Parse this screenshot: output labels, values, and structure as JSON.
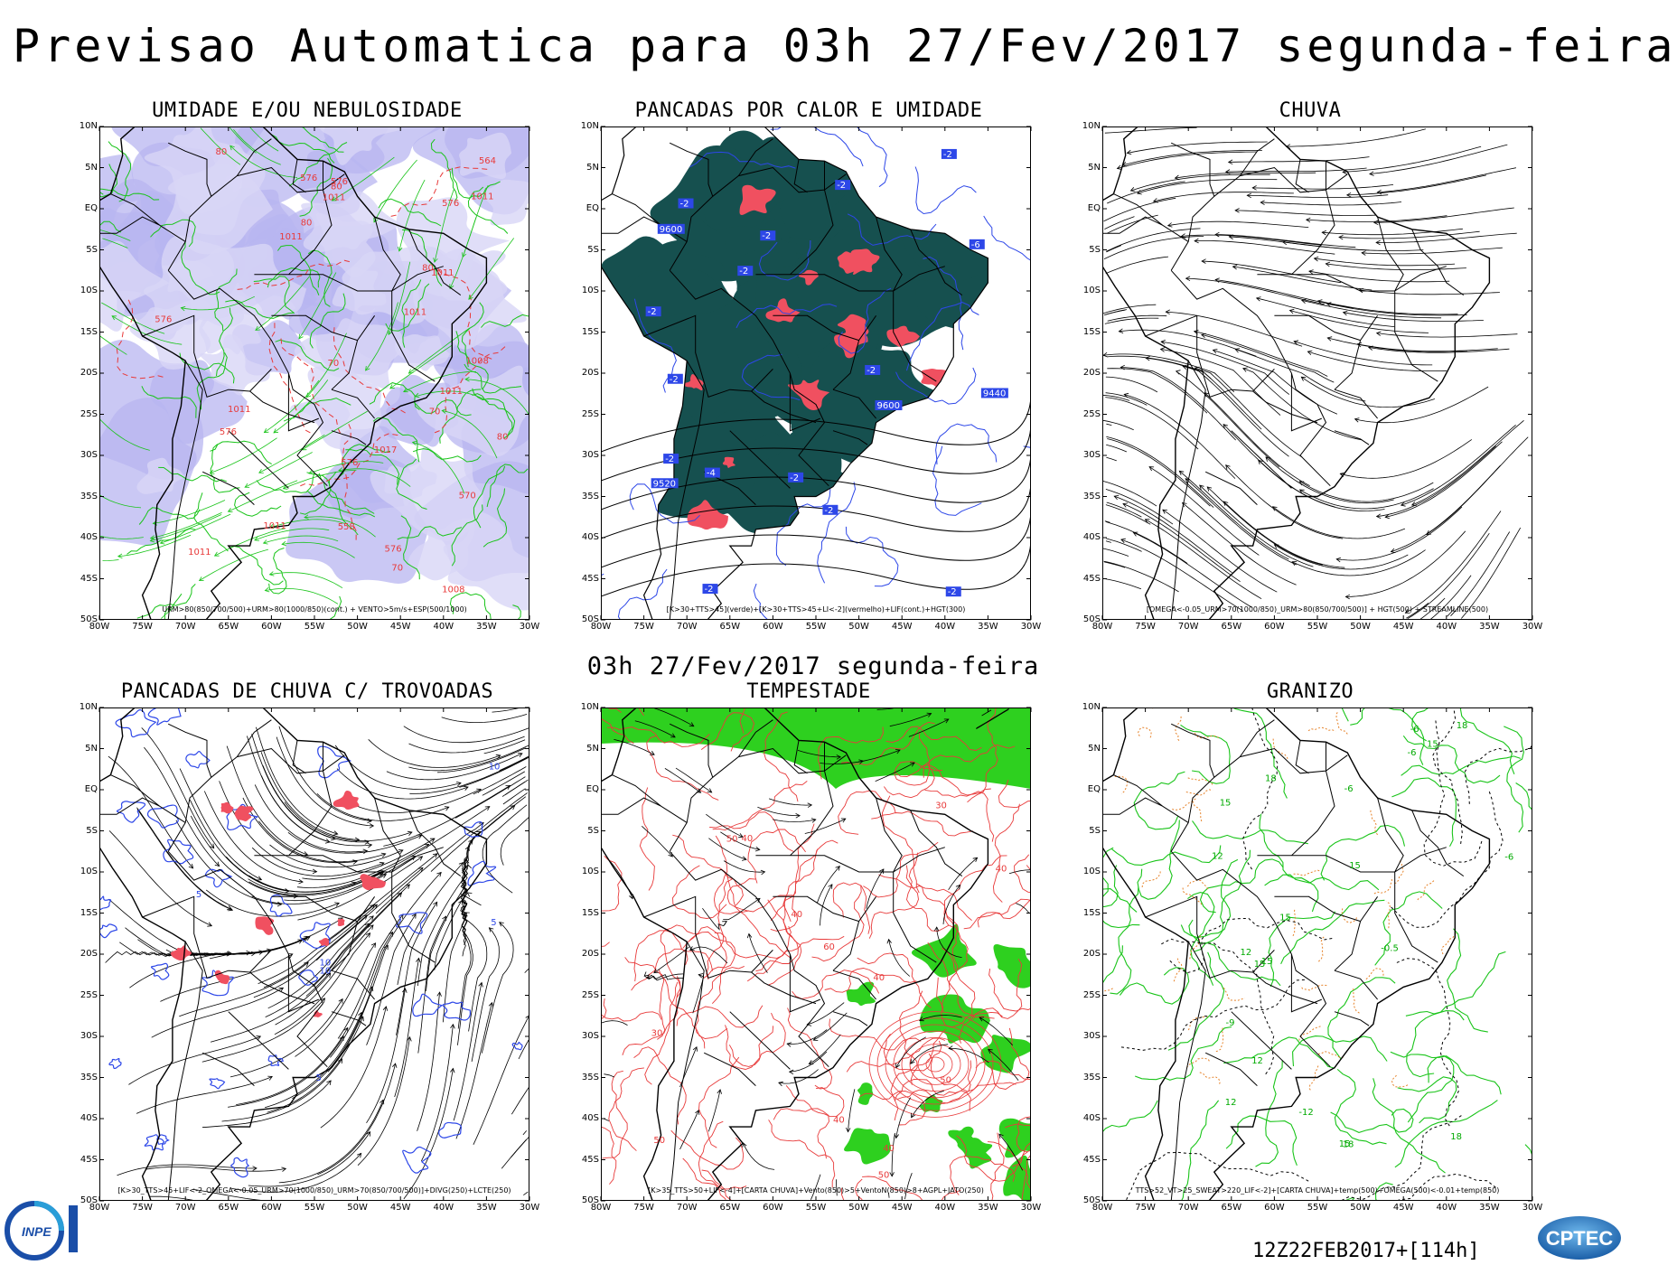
{
  "header": {
    "title": "Previsao Automatica  para 03h 27/Fev/2017 segunda-feira",
    "mid_title": "03h 27/Fev/2017 segunda-feira",
    "timestamp": "12Z22FEB2017+[114h]"
  },
  "axes": {
    "lat_labels": [
      "10N",
      "5N",
      "EQ",
      "5S",
      "10S",
      "15S",
      "20S",
      "25S",
      "30S",
      "35S",
      "40S",
      "45S",
      "50S"
    ],
    "lon_labels": [
      "80W",
      "75W",
      "70W",
      "65W",
      "60W",
      "55W",
      "50W",
      "45W",
      "40W",
      "35W",
      "30W"
    ]
  },
  "panels": [
    {
      "title": "UMIDADE E/OU NEBULOSIDADE",
      "legend": "URM>80(850/700/500)+URM>80(1000/850)(cont.) + VENTO>5m/s+ESP(500/1000)",
      "style": "humidity",
      "labels": [
        "576",
        "1011",
        "1011",
        "1011",
        "576",
        "576",
        "1011",
        "576",
        "1011",
        "576",
        "1008",
        "576",
        "1008",
        "576",
        "1011",
        "1011",
        "1011",
        "1011",
        "570",
        "558",
        "564",
        "1017",
        "80",
        "70",
        "80",
        "80",
        "70",
        "80",
        "80",
        "70"
      ]
    },
    {
      "title": "PANCADAS POR CALOR E UMIDADE",
      "legend": "[K>30+TTS>45](verde)+[K>30+TTS>45+LI<-2](vermelho)+LIF(cont.)+HGT(300)",
      "style": "heat",
      "labels": [
        "-2",
        "-2",
        "-2",
        "-2",
        "-2",
        "-2",
        "-2",
        "-2",
        "-4",
        "-6",
        "-2",
        "-2",
        "-2",
        "-2",
        "9600",
        "9600",
        "9520",
        "9440",
        "-2"
      ]
    },
    {
      "title": "CHUVA",
      "legend": "[OMEGA<-0.05_URM>70(1000/850)_URM>80(850/700/500)] + HGT(500) + STREAMLINE(500)",
      "style": "rain",
      "labels": []
    },
    {
      "title": "PANCADAS DE CHUVA C/ TROVOADAS",
      "legend": "[K>30_TTS>45+LIF<-2_OMEGA<-0.05_URM>70(1000/850)_URM>70(850/700/500)]+DIVG(250)+LCTE(250)",
      "style": "thunder",
      "labels": [
        "5",
        "10",
        "10",
        "5",
        "5",
        "10"
      ]
    },
    {
      "title": "TEMPESTADE",
      "legend": "[K>35_TTS>50+LIF<-4]+[CARTA CHUVA]+Vento(850)>5+VentoN(850)>8+AGPL+JATO(250)",
      "style": "storm",
      "labels": [
        "50",
        "40",
        "50",
        "40",
        "60",
        "50",
        "40",
        "30",
        "40",
        "50",
        "40",
        "40",
        "30"
      ]
    },
    {
      "title": "GRANIZO",
      "legend": "TTS>52_VT>25_SWEAT>220_LIF<-2]+[CARTA CHUVA]+temp(500)+OMEGA(500)<-0.01+temp(850)",
      "style": "hail",
      "labels": [
        "-6",
        "-6",
        "-6",
        "15",
        "18",
        "18",
        "15",
        "15",
        "12",
        "18",
        "-6",
        "15",
        "18",
        "12",
        "15",
        "12",
        "-12",
        "15",
        "-0.5",
        "-9",
        "12",
        "15"
      ]
    }
  ],
  "logos": {
    "left": "INPE",
    "right": "CPTEC"
  },
  "colors": {
    "cloud_lavender": "#b8b6f0",
    "contour_green": "#19c419",
    "contour_red": "#e83a3a",
    "contour_blue": "#2d47e8",
    "heat_teal": "#16504f",
    "heat_red": "#f05060",
    "storm_green": "#2ed01f",
    "hail_orange": "#e6832a"
  }
}
